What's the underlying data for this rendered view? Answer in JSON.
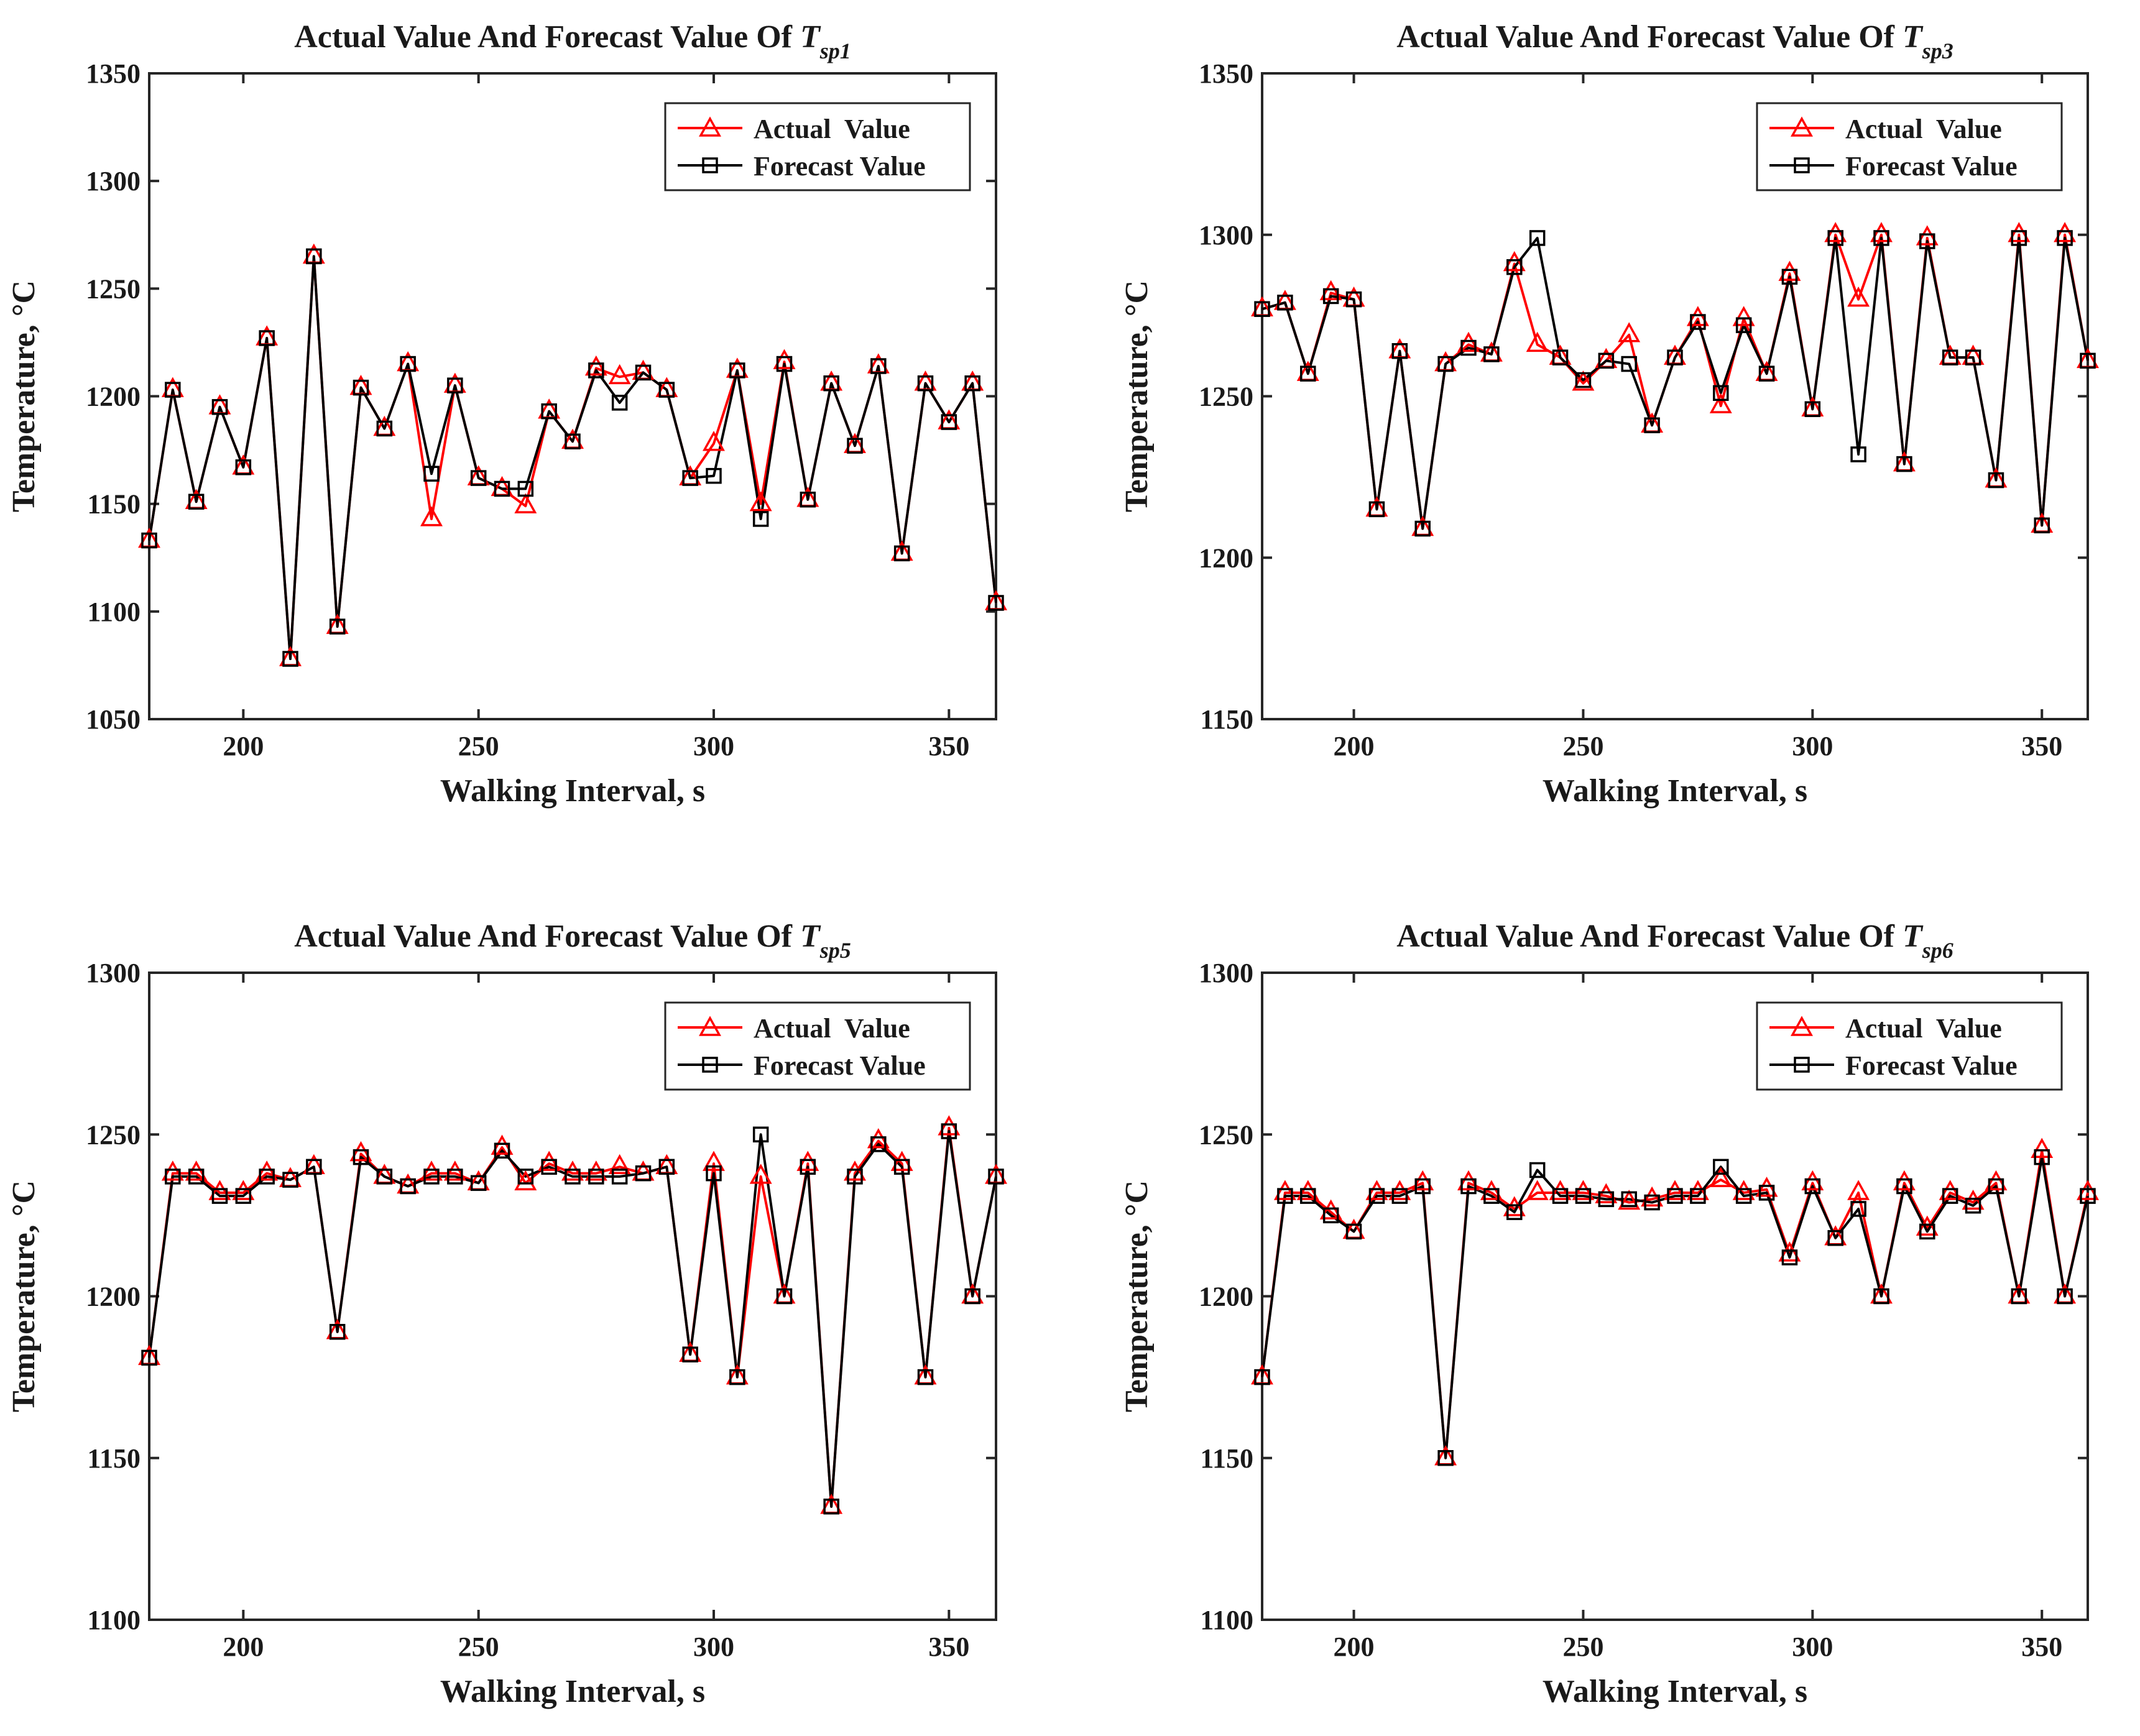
{
  "figure": {
    "background": "#ffffff"
  },
  "colors": {
    "actual": "#ff0000",
    "forecast": "#000000"
  },
  "legend": {
    "actual": "Actual  Value",
    "forecast": "Forecast Value"
  },
  "chart_data": [
    {
      "type": "line",
      "title_prefix": "Actual Value And Forecast Value Of ",
      "title_symbol": "T",
      "title_subscript": "sp1",
      "xlabel": "Walking Interval, s",
      "ylabel": "Temperature, °C",
      "xlim": [
        180,
        360
      ],
      "ylim": [
        1050,
        1350
      ],
      "xticks": [
        200,
        250,
        300,
        350
      ],
      "yticks": [
        1050,
        1100,
        1150,
        1200,
        1250,
        1300,
        1350
      ],
      "x": [
        180,
        185,
        190,
        195,
        200,
        205,
        210,
        215,
        220,
        225,
        230,
        235,
        240,
        245,
        250,
        255,
        260,
        265,
        270,
        275,
        280,
        285,
        290,
        295,
        300,
        305,
        310,
        315,
        320,
        325,
        330,
        335,
        340,
        345,
        350,
        355,
        360
      ],
      "series": [
        {
          "name": "Actual  Value",
          "marker": "triangle",
          "values": [
            1133,
            1203,
            1151,
            1195,
            1167,
            1227,
            1078,
            1265,
            1093,
            1204,
            1185,
            1215,
            1143,
            1205,
            1162,
            1157,
            1149,
            1193,
            1179,
            1213,
            1209,
            1211,
            1203,
            1162,
            1178,
            1212,
            1150,
            1216,
            1152,
            1206,
            1177,
            1214,
            1127,
            1206,
            1188,
            1206,
            1104
          ]
        },
        {
          "name": "Forecast Value",
          "marker": "square",
          "values": [
            1133,
            1203,
            1151,
            1195,
            1167,
            1227,
            1078,
            1265,
            1093,
            1204,
            1185,
            1215,
            1164,
            1205,
            1162,
            1157,
            1157,
            1193,
            1179,
            1212,
            1197,
            1211,
            1203,
            1162,
            1163,
            1212,
            1143,
            1215,
            1152,
            1206,
            1177,
            1214,
            1127,
            1206,
            1188,
            1206,
            1104
          ]
        }
      ]
    },
    {
      "type": "line",
      "title_prefix": "Actual Value And Forecast Value Of ",
      "title_symbol": "T",
      "title_subscript": "sp3",
      "xlabel": "Walking Interval, s",
      "ylabel": "Temperature, °C",
      "xlim": [
        180,
        360
      ],
      "ylim": [
        1150,
        1350
      ],
      "xticks": [
        200,
        250,
        300,
        350
      ],
      "yticks": [
        1150,
        1200,
        1250,
        1300,
        1350
      ],
      "x": [
        180,
        185,
        190,
        195,
        200,
        205,
        210,
        215,
        220,
        225,
        230,
        235,
        240,
        245,
        250,
        255,
        260,
        265,
        270,
        275,
        280,
        285,
        290,
        295,
        300,
        305,
        310,
        315,
        320,
        325,
        330,
        335,
        340,
        345,
        350,
        355,
        360
      ],
      "series": [
        {
          "name": "Actual  Value",
          "marker": "triangle",
          "values": [
            1277,
            1279,
            1257,
            1282,
            1280,
            1215,
            1264,
            1209,
            1260,
            1266,
            1263,
            1291,
            1266,
            1262,
            1254,
            1261,
            1269,
            1241,
            1262,
            1274,
            1247,
            1274,
            1257,
            1288,
            1246,
            1300,
            1280,
            1300,
            1229,
            1299,
            1262,
            1262,
            1224,
            1300,
            1210,
            1300,
            1261
          ]
        },
        {
          "name": "Forecast Value",
          "marker": "square",
          "values": [
            1277,
            1279,
            1257,
            1281,
            1280,
            1215,
            1264,
            1209,
            1260,
            1265,
            1263,
            1290,
            1299,
            1262,
            1255,
            1261,
            1260,
            1241,
            1262,
            1273,
            1251,
            1272,
            1257,
            1287,
            1246,
            1299,
            1232,
            1299,
            1229,
            1298,
            1262,
            1262,
            1224,
            1299,
            1210,
            1299,
            1261
          ]
        }
      ]
    },
    {
      "type": "line",
      "title_prefix": "Actual Value And Forecast Value Of ",
      "title_symbol": "T",
      "title_subscript": "sp5",
      "xlabel": "Walking Interval, s",
      "ylabel": "Temperature, °C",
      "xlim": [
        180,
        360
      ],
      "ylim": [
        1100,
        1300
      ],
      "xticks": [
        200,
        250,
        300,
        350
      ],
      "yticks": [
        1100,
        1150,
        1200,
        1250,
        1300
      ],
      "x": [
        180,
        185,
        190,
        195,
        200,
        205,
        210,
        215,
        220,
        225,
        230,
        235,
        240,
        245,
        250,
        255,
        260,
        265,
        270,
        275,
        280,
        285,
        290,
        295,
        300,
        305,
        310,
        315,
        320,
        325,
        330,
        335,
        340,
        345,
        350,
        355,
        360
      ],
      "series": [
        {
          "name": "Actual  Value",
          "marker": "triangle",
          "values": [
            1181,
            1238,
            1238,
            1232,
            1232,
            1238,
            1236,
            1240,
            1189,
            1244,
            1237,
            1234,
            1238,
            1238,
            1235,
            1246,
            1235,
            1241,
            1238,
            1238,
            1240,
            1238,
            1240,
            1182,
            1241,
            1175,
            1237,
            1200,
            1241,
            1135,
            1238,
            1248,
            1241,
            1175,
            1252,
            1200,
            1237
          ]
        },
        {
          "name": "Forecast Value",
          "marker": "square",
          "values": [
            1181,
            1237,
            1237,
            1231,
            1231,
            1237,
            1236,
            1240,
            1189,
            1243,
            1237,
            1234,
            1237,
            1237,
            1235,
            1245,
            1237,
            1240,
            1237,
            1237,
            1237,
            1238,
            1240,
            1182,
            1238,
            1175,
            1250,
            1200,
            1240,
            1135,
            1237,
            1247,
            1240,
            1175,
            1251,
            1200,
            1237
          ]
        }
      ]
    },
    {
      "type": "line",
      "title_prefix": "Actual Value And Forecast Value Of ",
      "title_symbol": "T",
      "title_subscript": "sp6",
      "xlabel": "Walking Interval, s",
      "ylabel": "Temperature, °C",
      "xlim": [
        180,
        360
      ],
      "ylim": [
        1100,
        1300
      ],
      "xticks": [
        200,
        250,
        300,
        350
      ],
      "yticks": [
        1100,
        1150,
        1200,
        1250,
        1300
      ],
      "x": [
        180,
        185,
        190,
        195,
        200,
        205,
        210,
        215,
        220,
        225,
        230,
        235,
        240,
        245,
        250,
        255,
        260,
        265,
        270,
        275,
        280,
        285,
        290,
        295,
        300,
        305,
        310,
        315,
        320,
        325,
        330,
        335,
        340,
        345,
        350,
        355,
        360
      ],
      "series": [
        {
          "name": "Actual  Value",
          "marker": "triangle",
          "values": [
            1175,
            1232,
            1232,
            1226,
            1220,
            1232,
            1232,
            1235,
            1150,
            1235,
            1232,
            1227,
            1232,
            1232,
            1232,
            1231,
            1229,
            1230,
            1232,
            1232,
            1236,
            1232,
            1233,
            1213,
            1235,
            1218,
            1232,
            1200,
            1235,
            1221,
            1232,
            1229,
            1235,
            1200,
            1245,
            1200,
            1232
          ]
        },
        {
          "name": "Forecast Value",
          "marker": "square",
          "values": [
            1175,
            1231,
            1231,
            1225,
            1220,
            1231,
            1231,
            1234,
            1150,
            1234,
            1231,
            1226,
            1239,
            1231,
            1231,
            1230,
            1230,
            1229,
            1231,
            1231,
            1240,
            1231,
            1232,
            1212,
            1234,
            1218,
            1227,
            1200,
            1234,
            1220,
            1231,
            1228,
            1234,
            1200,
            1243,
            1200,
            1231
          ]
        }
      ]
    }
  ]
}
